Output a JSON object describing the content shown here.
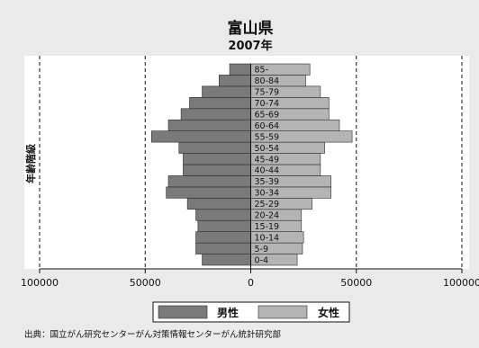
{
  "chart_data": {
    "type": "bar",
    "orientation": "horizontal",
    "title": "富山県",
    "subtitle": "2007年",
    "ylabel": "年齢階級",
    "categories": [
      "0-4",
      "5-9",
      "10-14",
      "15-19",
      "20-24",
      "25-29",
      "30-34",
      "35-39",
      "40-44",
      "45-49",
      "50-54",
      "55-59",
      "60-64",
      "65-69",
      "70-74",
      "75-79",
      "80-84",
      "85-"
    ],
    "series": [
      {
        "name": "男性",
        "color": "#7a7a7a",
        "side": "left",
        "values": [
          23000,
          26000,
          26000,
          25000,
          26000,
          30000,
          40000,
          39000,
          32000,
          32000,
          34000,
          47000,
          39000,
          33000,
          29000,
          23000,
          15000,
          10000
        ]
      },
      {
        "name": "女性",
        "color": "#b4b4b4",
        "side": "right",
        "values": [
          22000,
          24500,
          25000,
          24000,
          24000,
          29000,
          38000,
          38000,
          33000,
          33000,
          35000,
          48000,
          42000,
          37000,
          37000,
          33000,
          26000,
          28000
        ]
      }
    ],
    "xlim": [
      -100000,
      100000
    ],
    "xticks": [
      -100000,
      -50000,
      0,
      50000,
      100000
    ],
    "xtick_labels": [
      "100000",
      "50000",
      "0",
      "50000",
      "100000"
    ],
    "grid": "vertical-dashed"
  },
  "source": "出典：国立がん研究センターがん対策情報センターがん統計研究部"
}
